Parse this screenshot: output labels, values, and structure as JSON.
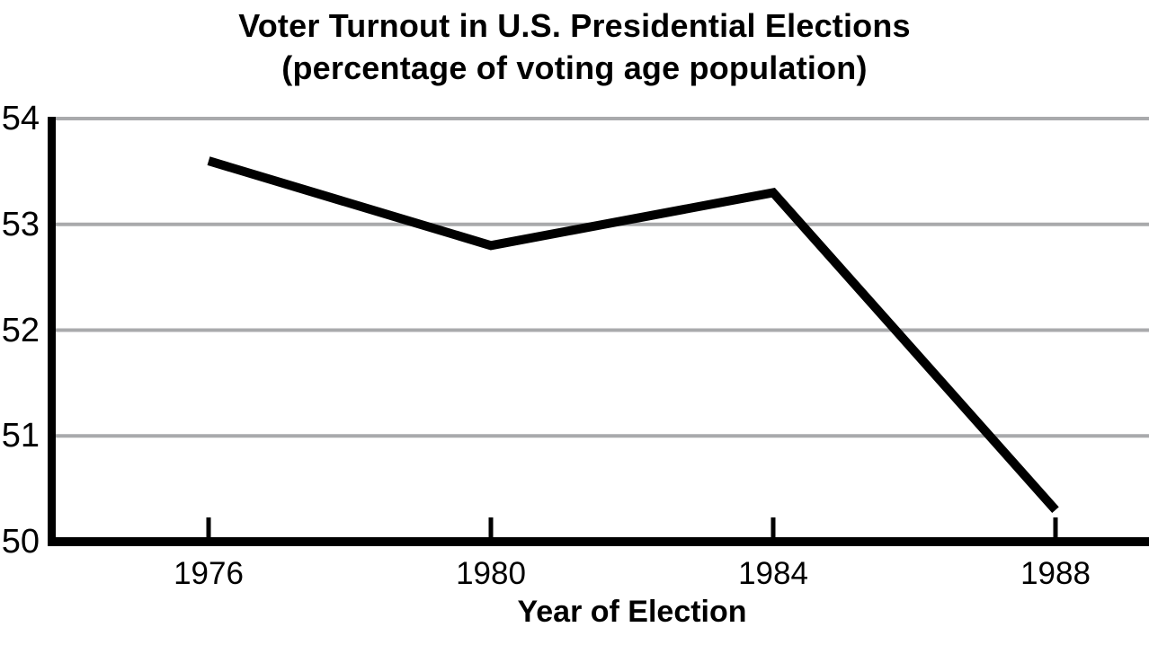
{
  "chart_data": {
    "type": "line",
    "title": "Voter Turnout in U.S. Presidential Elections",
    "subtitle": "(percentage of voting age population)",
    "xlabel": "Year of Election",
    "ylabel": "",
    "categories": [
      "1976",
      "1980",
      "1984",
      "1988"
    ],
    "values": [
      53.6,
      52.8,
      53.3,
      50.3
    ],
    "ylim": [
      50,
      54
    ],
    "yticks": [
      54,
      53,
      52,
      51,
      50
    ],
    "grid": "horizontal gridlines at 51-54, none at 50 (baseline is axis)",
    "legend_position": "none",
    "colors": {
      "line": "#000000",
      "grid": "#a9aaac",
      "text": "#000000",
      "background": "#ffffff"
    }
  }
}
